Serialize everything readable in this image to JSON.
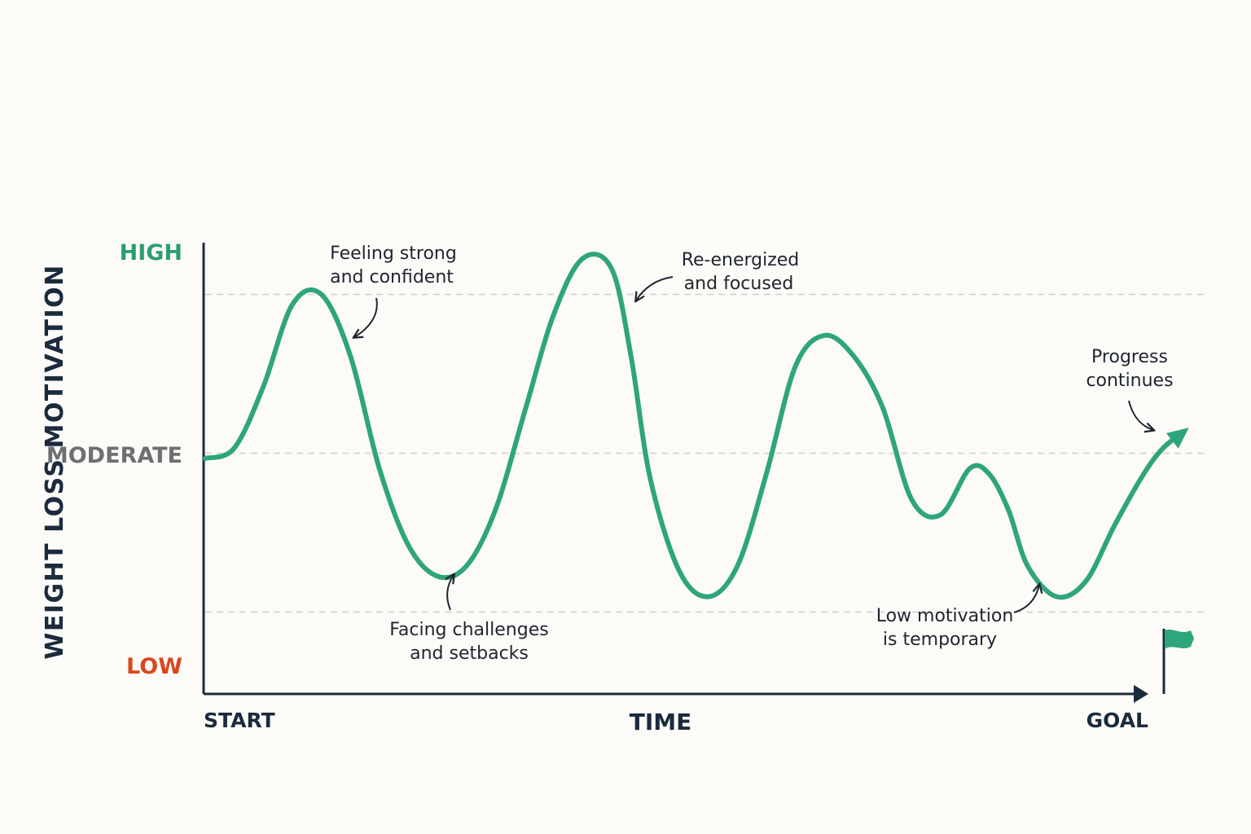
{
  "colors": {
    "background": "#fcfbf8",
    "curve": "#2fa57c",
    "high": "#2c9c74",
    "moderate": "#6d6f72",
    "low": "#d9471e",
    "axis": "#1b2b3e",
    "gridline": "#cfcfcf",
    "annotation": "#1f2530",
    "flag": "#2fa57c"
  },
  "chart_data": {
    "type": "line",
    "ylabel": "WEIGHT LOSS MOTIVATION",
    "xlabel": "TIME",
    "x_start_label": "START",
    "x_end_label": "GOAL",
    "y_levels": [
      {
        "label": "HIGH",
        "value": 1.0,
        "color": "#2c9c74"
      },
      {
        "label": "MODERATE",
        "value": 0.5,
        "color": "#6d6f72"
      },
      {
        "label": "LOW",
        "value": 0.0,
        "color": "#d9471e"
      }
    ],
    "gridlines": [
      0.81,
      0.5,
      0.19
    ],
    "ylim": [
      0,
      1
    ],
    "xlim": [
      0,
      1
    ],
    "series": [
      {
        "color": "#2fa57c",
        "points": [
          [
            0.0,
            0.49
          ],
          [
            0.03,
            0.51
          ],
          [
            0.06,
            0.63
          ],
          [
            0.09,
            0.79
          ],
          [
            0.12,
            0.81
          ],
          [
            0.15,
            0.69
          ],
          [
            0.18,
            0.47
          ],
          [
            0.21,
            0.32
          ],
          [
            0.24,
            0.26
          ],
          [
            0.27,
            0.28
          ],
          [
            0.3,
            0.39
          ],
          [
            0.33,
            0.58
          ],
          [
            0.36,
            0.77
          ],
          [
            0.39,
            0.88
          ],
          [
            0.42,
            0.86
          ],
          [
            0.44,
            0.69
          ],
          [
            0.46,
            0.45
          ],
          [
            0.49,
            0.27
          ],
          [
            0.52,
            0.22
          ],
          [
            0.55,
            0.28
          ],
          [
            0.58,
            0.46
          ],
          [
            0.61,
            0.67
          ],
          [
            0.64,
            0.73
          ],
          [
            0.67,
            0.69
          ],
          [
            0.7,
            0.59
          ],
          [
            0.73,
            0.41
          ],
          [
            0.76,
            0.38
          ],
          [
            0.79,
            0.47
          ],
          [
            0.81,
            0.46
          ],
          [
            0.83,
            0.39
          ],
          [
            0.85,
            0.28
          ],
          [
            0.88,
            0.22
          ],
          [
            0.91,
            0.25
          ],
          [
            0.94,
            0.36
          ],
          [
            0.97,
            0.46
          ],
          [
            0.99,
            0.51
          ],
          [
            1.01,
            0.54
          ]
        ]
      }
    ],
    "annotations": [
      {
        "lines": [
          "Feeling strong",
          "and confident"
        ]
      },
      {
        "lines": [
          "Facing challenges",
          "and setbacks"
        ]
      },
      {
        "lines": [
          "Re-energized",
          "and focused"
        ]
      },
      {
        "lines": [
          "Progress",
          "continues"
        ]
      },
      {
        "lines": [
          "Low motivation",
          "is temporary"
        ]
      }
    ],
    "icon": "goal-flag-icon"
  }
}
